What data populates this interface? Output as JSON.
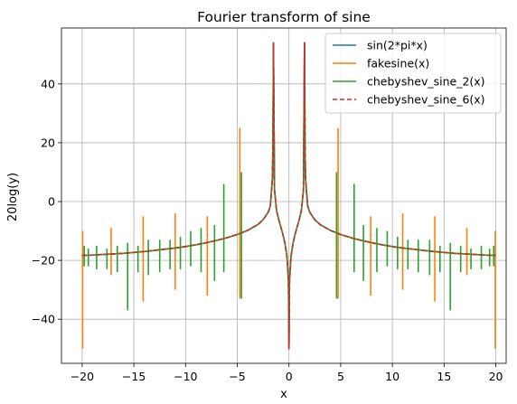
{
  "chart_data": {
    "type": "line",
    "title": "Fourier transform of sine",
    "xlabel": "x",
    "ylabel": "20log(y)",
    "xlim": [
      -22,
      21
    ],
    "ylim": [
      -55,
      59
    ],
    "xticks": [
      -20,
      -15,
      -10,
      -5,
      0,
      5,
      10,
      15,
      20
    ],
    "xtick_labels": [
      "−20",
      "−15",
      "−10",
      "−5",
      "0",
      "5",
      "10",
      "15",
      "20"
    ],
    "yticks": [
      -40,
      -20,
      0,
      20,
      40
    ],
    "ytick_labels": [
      "−40",
      "−20",
      "0",
      "20",
      "40"
    ],
    "grid": true,
    "legend_position": "top-right",
    "x": [
      -20,
      -19,
      -18,
      -17,
      -16,
      -15,
      -14,
      -13,
      -12,
      -11,
      -10,
      -9,
      -8,
      -7,
      -6,
      -5,
      -4,
      -3,
      -2.5,
      -2,
      -1.8,
      -1.6,
      -1.55,
      -1.5,
      -1.4,
      -1.2,
      -1,
      -0.8,
      -0.6,
      -0.4,
      -0.2,
      -0.05,
      0,
      0.05,
      0.2,
      0.4,
      0.6,
      0.8,
      1,
      1.2,
      1.4,
      1.5,
      1.55,
      1.6,
      1.8,
      2,
      2.5,
      3,
      4,
      5,
      6,
      7,
      8,
      9,
      10,
      11,
      12,
      13,
      14,
      15,
      16,
      17,
      18,
      19,
      20
    ],
    "series": [
      {
        "name": "sin(2*pi*x)",
        "color": "#1f77b4",
        "dashed": false,
        "values": [
          -18.3,
          -18.2,
          -18.0,
          -17.8,
          -17.6,
          -17.3,
          -17.0,
          -16.6,
          -16.2,
          -15.8,
          -15.3,
          -14.7,
          -14.0,
          -13.2,
          -12.3,
          -11.2,
          -9.8,
          -7.8,
          -6.2,
          -3.6,
          -1.4,
          8.0,
          20.0,
          54.0,
          4.0,
          -3.0,
          -6.0,
          -8.5,
          -11.0,
          -14.0,
          -18.5,
          -27.0,
          -50.0,
          -27.0,
          -18.5,
          -14.0,
          -11.0,
          -8.5,
          -6.0,
          -3.0,
          4.0,
          54.0,
          20.0,
          8.0,
          -1.4,
          -3.6,
          -6.2,
          -7.8,
          -9.8,
          -11.2,
          -12.3,
          -13.2,
          -14.0,
          -14.7,
          -15.3,
          -15.8,
          -16.2,
          -16.6,
          -17.0,
          -17.3,
          -17.6,
          -17.8,
          -18.0,
          -18.2,
          -18.3
        ]
      },
      {
        "name": "fakesine(x)",
        "color": "#ff7f0e",
        "dashed": false,
        "values": [
          -18.3,
          -18.2,
          -18.0,
          -17.8,
          -17.6,
          -17.3,
          -17.0,
          -16.6,
          -16.2,
          -15.8,
          -15.3,
          -14.7,
          -14.0,
          -13.2,
          -12.3,
          -11.2,
          -9.8,
          -7.8,
          -6.2,
          -3.6,
          -1.4,
          8.0,
          20.0,
          54.0,
          4.0,
          -3.0,
          -6.0,
          -8.5,
          -11.0,
          -14.0,
          -18.5,
          -27.0,
          -50.0,
          -27.0,
          -18.5,
          -14.0,
          -11.0,
          -8.5,
          -6.0,
          -3.0,
          4.0,
          54.0,
          20.0,
          8.0,
          -1.4,
          -3.6,
          -6.2,
          -7.8,
          -9.8,
          -11.2,
          -12.3,
          -13.2,
          -14.0,
          -14.7,
          -15.3,
          -15.8,
          -16.2,
          -16.6,
          -17.0,
          -17.3,
          -17.6,
          -17.8,
          -18.0,
          -18.2,
          -18.3
        ],
        "spikes": [
          {
            "x": -19.95,
            "high": -10,
            "low": -50
          },
          {
            "x": -17.2,
            "high": -9,
            "low": -25
          },
          {
            "x": -14.1,
            "high": -5,
            "low": -34
          },
          {
            "x": -11.0,
            "high": -4,
            "low": -30
          },
          {
            "x": -7.9,
            "high": -5,
            "low": -32
          },
          {
            "x": -4.75,
            "high": 25,
            "low": -33
          },
          {
            "x": 4.75,
            "high": 25,
            "low": -33
          },
          {
            "x": 7.9,
            "high": -5,
            "low": -32
          },
          {
            "x": 11.0,
            "high": -4,
            "low": -30
          },
          {
            "x": 14.1,
            "high": -5,
            "low": -34
          },
          {
            "x": 17.2,
            "high": -9,
            "low": -25
          },
          {
            "x": 19.95,
            "high": -10,
            "low": -50
          }
        ]
      },
      {
        "name": "chebyshev_sine_2(x)",
        "color": "#2ca02c",
        "dashed": false,
        "values": [
          -18.3,
          -18.2,
          -18.0,
          -17.8,
          -17.6,
          -17.3,
          -17.0,
          -16.6,
          -16.2,
          -15.8,
          -15.3,
          -14.7,
          -14.0,
          -13.2,
          -12.3,
          -11.2,
          -9.8,
          -7.8,
          -6.2,
          -3.6,
          -1.4,
          8.0,
          20.0,
          54.0,
          4.0,
          -3.0,
          -6.0,
          -8.5,
          -11.0,
          -14.0,
          -18.5,
          -27.0,
          -50.0,
          -27.0,
          -18.5,
          -14.0,
          -11.0,
          -8.5,
          -6.0,
          -3.0,
          4.0,
          54.0,
          20.0,
          8.0,
          -1.4,
          -3.6,
          -6.2,
          -7.8,
          -9.8,
          -11.2,
          -12.3,
          -13.2,
          -14.0,
          -14.7,
          -15.3,
          -15.8,
          -16.2,
          -16.6,
          -17.0,
          -17.3,
          -17.6,
          -17.8,
          -18.0,
          -18.2,
          -18.3
        ],
        "spikes": [
          {
            "x": -19.8,
            "high": -15,
            "low": -22
          },
          {
            "x": -19.4,
            "high": -16,
            "low": -22
          },
          {
            "x": -18.6,
            "high": -15,
            "low": -23
          },
          {
            "x": -17.6,
            "high": -16,
            "low": -23
          },
          {
            "x": -16.6,
            "high": -15,
            "low": -24
          },
          {
            "x": -15.6,
            "high": -14,
            "low": -37
          },
          {
            "x": -14.6,
            "high": -15,
            "low": -24
          },
          {
            "x": -13.6,
            "high": -13,
            "low": -25
          },
          {
            "x": -12.5,
            "high": -13,
            "low": -24
          },
          {
            "x": -11.5,
            "high": -13,
            "low": -23
          },
          {
            "x": -10.5,
            "high": -12,
            "low": -23
          },
          {
            "x": -9.5,
            "high": -10,
            "low": -22
          },
          {
            "x": -8.5,
            "high": -9,
            "low": -24
          },
          {
            "x": -7.2,
            "high": -8,
            "low": -27
          },
          {
            "x": -6.3,
            "high": 6,
            "low": -24
          },
          {
            "x": -4.6,
            "high": 10,
            "low": -33
          },
          {
            "x": 4.6,
            "high": 10,
            "low": -33
          },
          {
            "x": 6.3,
            "high": 6,
            "low": -24
          },
          {
            "x": 7.2,
            "high": -8,
            "low": -27
          },
          {
            "x": 8.5,
            "high": -9,
            "low": -24
          },
          {
            "x": 9.5,
            "high": -10,
            "low": -22
          },
          {
            "x": 10.5,
            "high": -12,
            "low": -23
          },
          {
            "x": 11.5,
            "high": -13,
            "low": -23
          },
          {
            "x": 12.5,
            "high": -13,
            "low": -24
          },
          {
            "x": 13.6,
            "high": -13,
            "low": -25
          },
          {
            "x": 14.6,
            "high": -15,
            "low": -24
          },
          {
            "x": 15.6,
            "high": -14,
            "low": -37
          },
          {
            "x": 16.6,
            "high": -15,
            "low": -24
          },
          {
            "x": 17.6,
            "high": -16,
            "low": -23
          },
          {
            "x": 18.6,
            "high": -15,
            "low": -23
          },
          {
            "x": 19.4,
            "high": -16,
            "low": -22
          },
          {
            "x": 19.8,
            "high": -15,
            "low": -22
          }
        ]
      },
      {
        "name": "chebyshev_sine_6(x)",
        "color": "#d62728",
        "dashed": true,
        "values": [
          -18.3,
          -18.2,
          -18.0,
          -17.8,
          -17.6,
          -17.3,
          -17.0,
          -16.6,
          -16.2,
          -15.8,
          -15.3,
          -14.7,
          -14.0,
          -13.2,
          -12.3,
          -11.2,
          -9.8,
          -7.8,
          -6.2,
          -3.6,
          -1.4,
          8.0,
          20.0,
          54.0,
          4.0,
          -3.0,
          -6.0,
          -8.5,
          -11.0,
          -14.0,
          -18.5,
          -27.0,
          -50.0,
          -27.0,
          -18.5,
          -14.0,
          -11.0,
          -8.5,
          -6.0,
          -3.0,
          4.0,
          54.0,
          20.0,
          8.0,
          -1.4,
          -3.6,
          -6.2,
          -7.8,
          -9.8,
          -11.2,
          -12.3,
          -13.2,
          -14.0,
          -14.7,
          -15.3,
          -15.8,
          -16.2,
          -16.6,
          -17.0,
          -17.3,
          -17.6,
          -17.8,
          -18.0,
          -18.2,
          -18.3
        ]
      }
    ]
  }
}
